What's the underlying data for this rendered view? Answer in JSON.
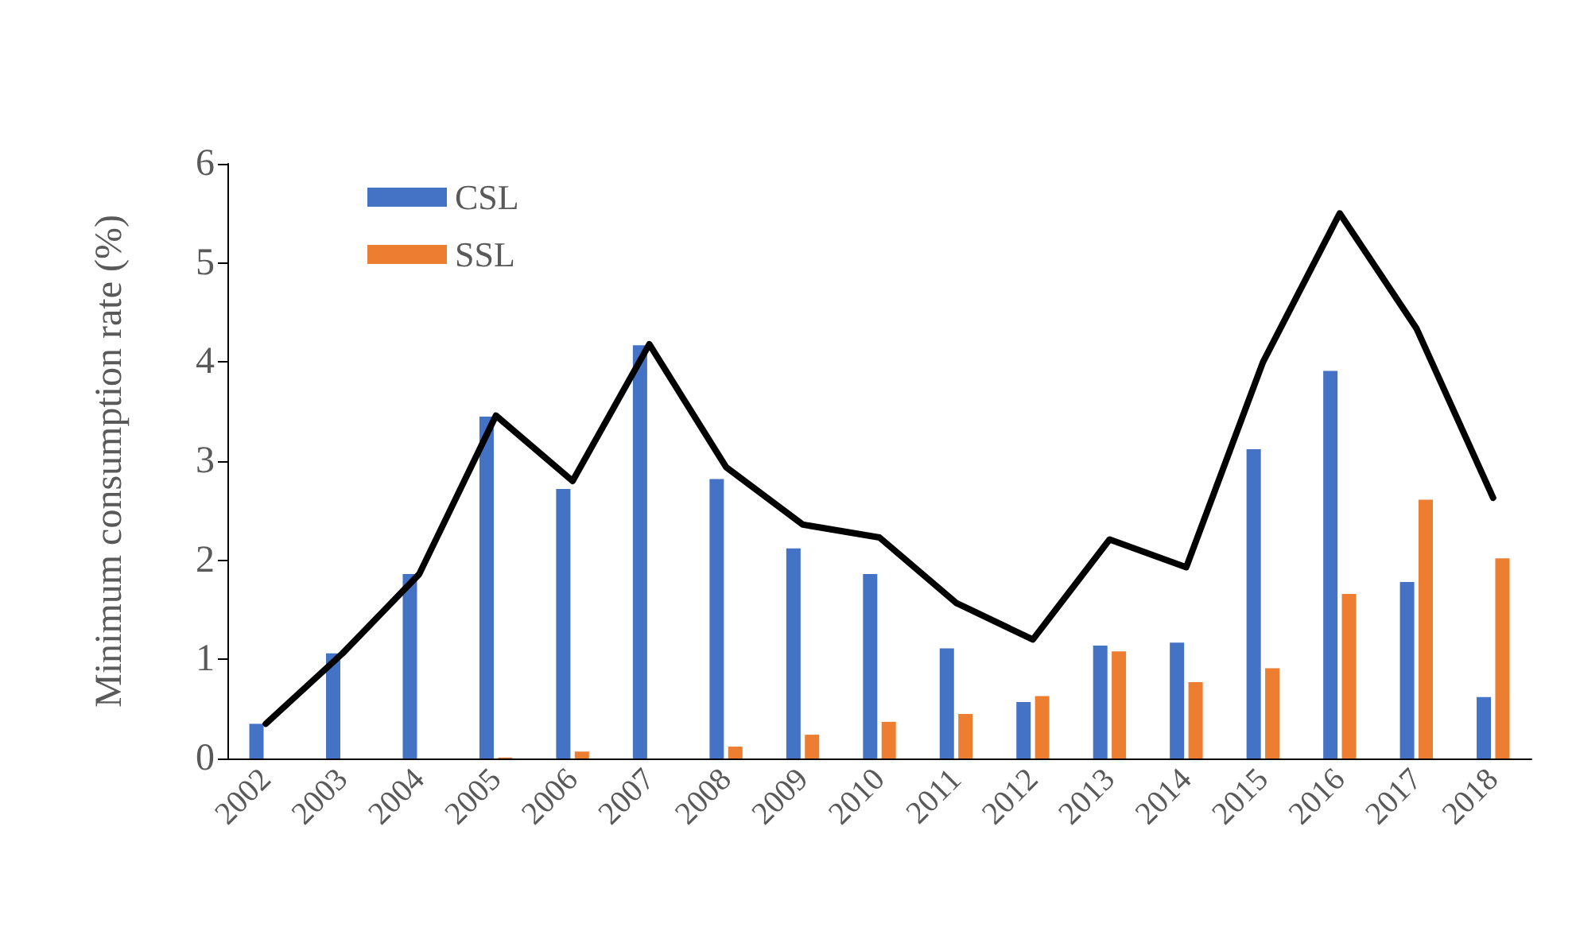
{
  "chart_data": {
    "type": "bar",
    "ylabel": "Minimum consumption rate (%)",
    "categories": [
      "2002",
      "2003",
      "2004",
      "2005",
      "2006",
      "2007",
      "2008",
      "2009",
      "2010",
      "2011",
      "2012",
      "2013",
      "2014",
      "2015",
      "2016",
      "2017",
      "2018"
    ],
    "series": [
      {
        "name": "CSL",
        "color": "#4472c4",
        "values": [
          0.35,
          1.06,
          1.86,
          3.45,
          2.72,
          4.17,
          2.82,
          2.12,
          1.86,
          1.11,
          0.57,
          1.14,
          1.17,
          3.12,
          3.91,
          1.78,
          0.62
        ]
      },
      {
        "name": "SSL",
        "color": "#ed7d31",
        "values": [
          0,
          0,
          0,
          0.01,
          0.07,
          0,
          0.12,
          0.24,
          0.37,
          0.45,
          0.63,
          1.08,
          0.77,
          0.91,
          1.66,
          2.61,
          2.02
        ]
      },
      {
        "type": "line",
        "color": "#000000",
        "values": [
          0.35,
          1.06,
          1.86,
          3.46,
          2.8,
          4.18,
          2.94,
          2.36,
          2.23,
          1.57,
          1.2,
          2.21,
          1.93,
          4.0,
          5.5,
          4.34,
          2.63
        ]
      }
    ],
    "ylim": [
      0,
      6
    ],
    "yticks": [
      0,
      1,
      2,
      3,
      4,
      5,
      6
    ],
    "grid": false,
    "legend": "top left",
    "marker": "none",
    "line_style": "solid"
  }
}
